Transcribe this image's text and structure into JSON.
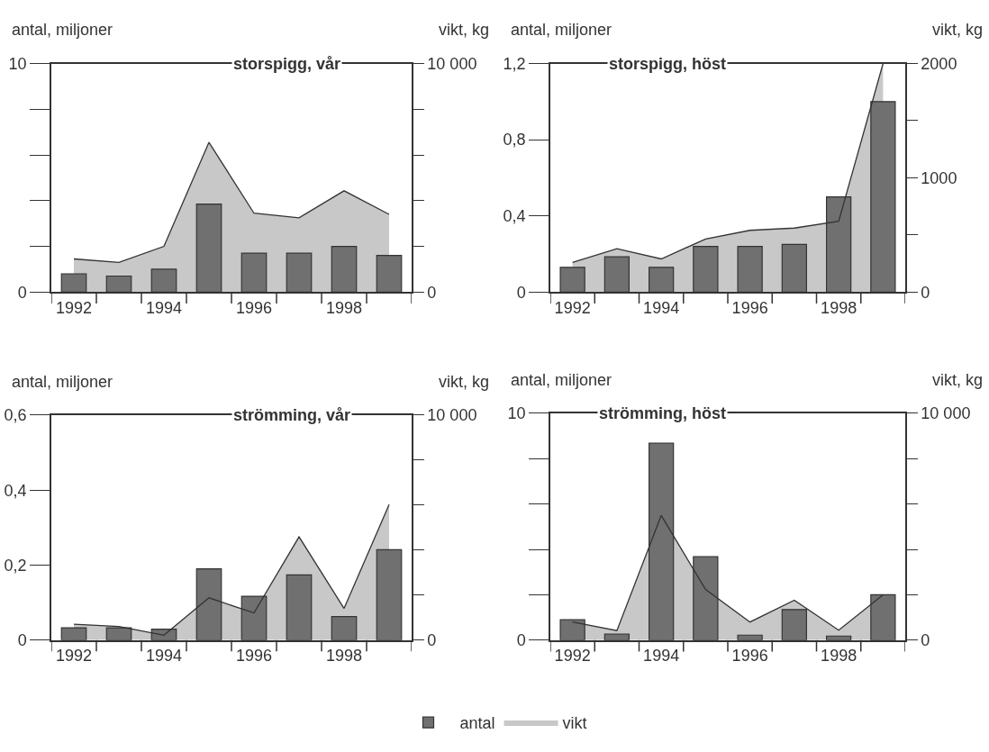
{
  "chart_data": [
    {
      "type": "bar",
      "title": "storspigg, vår",
      "ylabel": "antal, miljoner",
      "y2label": "vikt, kg",
      "legend": "bottom",
      "categories": [
        "1992",
        null,
        "1994",
        null,
        "1996",
        null,
        "1998",
        null
      ],
      "ylim": [
        0,
        10
      ],
      "yticks": [
        0,
        {
          "value": 2,
          "label": null
        },
        {
          "value": 4,
          "label": null
        },
        {
          "value": 6,
          "label": null
        },
        {
          "value": 8,
          "label": null
        },
        10
      ],
      "y2lim": [
        0,
        10000
      ],
      "y2ticks": [
        0,
        {
          "value": 2000,
          "label": null
        },
        {
          "value": 4000,
          "label": null
        },
        {
          "value": 6000,
          "label": null
        },
        {
          "value": 8000,
          "label": null
        },
        {
          "value": 10000,
          "label": "10 000"
        }
      ],
      "series": [
        {
          "name": "antal",
          "color": "#707070",
          "values": [
            0.8,
            0.7,
            1.0,
            3.85,
            1.7,
            1.7,
            2.0,
            1.6
          ]
        },
        {
          "name": "vikt",
          "type": "area",
          "axis": "y2",
          "color": "#c8c8c8",
          "values": [
            1450,
            1300,
            2000,
            6550,
            3450,
            3250,
            4430,
            3400
          ]
        }
      ]
    },
    {
      "type": "bar",
      "title": "storspigg, höst",
      "ylabel": "antal, miljoner",
      "y2label": "vikt, kg",
      "categories": [
        "1992",
        null,
        "1994",
        null,
        "1996",
        null,
        "1998",
        null
      ],
      "ylim": [
        0,
        1.2
      ],
      "yticks": [
        0,
        {
          "value": 0.4,
          "label": "0,4"
        },
        {
          "value": 0.8,
          "label": "0,8"
        },
        {
          "value": 1.2,
          "label": "1,2"
        }
      ],
      "y2lim": [
        0,
        2000
      ],
      "y2ticks": [
        0,
        {
          "value": 500,
          "label": null
        },
        1000,
        {
          "value": 1500,
          "label": null
        },
        2000
      ],
      "series": [
        {
          "color": "#707070",
          "values": [
            0.13,
            0.185,
            0.13,
            0.24,
            0.24,
            0.25,
            0.5,
            1.0
          ]
        },
        {
          "type": "area",
          "axis": "y2",
          "color": "#c8c8c8",
          "values": [
            260,
            380,
            290,
            465,
            540,
            560,
            620,
            2000
          ]
        }
      ]
    },
    {
      "type": "bar",
      "title": "strömming, vår",
      "ylabel": "antal, miljoner",
      "y2label": "vikt, kg",
      "categories": [
        "1992",
        null,
        "1994",
        null,
        "1996",
        null,
        "1998",
        null
      ],
      "ylim": [
        0,
        0.6
      ],
      "yticks": [
        0,
        {
          "value": 0.2,
          "label": "0,2"
        },
        {
          "value": 0.4,
          "label": "0,4"
        },
        {
          "value": 0.6,
          "label": "0,6"
        }
      ],
      "y2lim": [
        0,
        10000
      ],
      "y2ticks": [
        0,
        {
          "value": 2000,
          "label": null
        },
        {
          "value": 4000,
          "label": null
        },
        {
          "value": 6000,
          "label": null
        },
        {
          "value": 8000,
          "label": null
        },
        {
          "value": 10000,
          "label": "10 000"
        }
      ],
      "series": [
        {
          "color": "#707070",
          "values": [
            0.033,
            0.033,
            0.029,
            0.19,
            0.117,
            0.174,
            0.063,
            0.241
          ]
        },
        {
          "type": "area",
          "axis": "y2",
          "color": "#c8c8c8",
          "values": [
            710,
            610,
            220,
            1880,
            1210,
            4590,
            1410,
            6030
          ]
        }
      ]
    },
    {
      "type": "bar",
      "title": "strömming, höst",
      "ylabel": "antal, miljoner",
      "y2label": "vikt, kg",
      "categories": [
        "1992",
        null,
        "1994",
        null,
        "1996",
        null,
        "1998",
        null
      ],
      "ylim": [
        0,
        10
      ],
      "yticks": [
        0,
        {
          "value": 2,
          "label": null
        },
        {
          "value": 4,
          "label": null
        },
        {
          "value": 6,
          "label": null
        },
        {
          "value": 8,
          "label": null
        },
        10
      ],
      "y2lim": [
        0,
        10000
      ],
      "y2ticks": [
        0,
        {
          "value": 2000,
          "label": null
        },
        {
          "value": 4000,
          "label": null
        },
        {
          "value": 6000,
          "label": null
        },
        {
          "value": 8000,
          "label": null
        },
        {
          "value": 10000,
          "label": "10 000"
        }
      ],
      "series": [
        {
          "color": "#707070",
          "values": [
            0.9,
            0.27,
            8.68,
            3.68,
            0.22,
            1.35,
            0.18,
            2.0
          ]
        },
        {
          "type": "area",
          "axis": "y2",
          "color": "#c8c8c8",
          "values": [
            800,
            420,
            5500,
            2230,
            800,
            1760,
            440,
            2000
          ]
        }
      ]
    }
  ]
}
